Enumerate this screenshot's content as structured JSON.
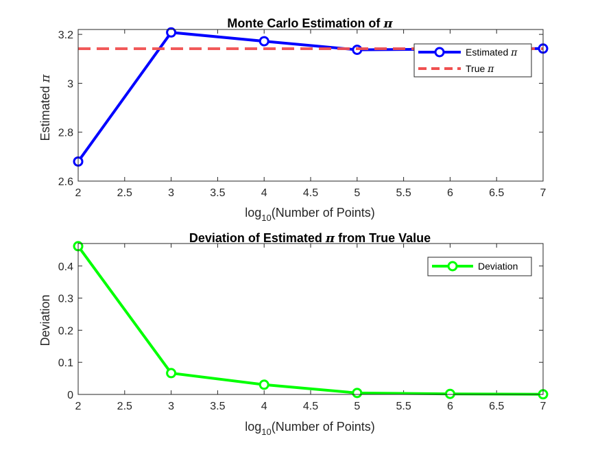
{
  "chart_data": [
    {
      "type": "line",
      "title": "Monte Carlo Estimation of",
      "title_symbol": "π",
      "xlabel_base": "log",
      "xlabel_sub": "10",
      "xlabel_rest": "(Number of Points)",
      "ylabel": "Estimated",
      "ylabel_symbol": "π",
      "xlim": [
        2,
        7
      ],
      "ylim": [
        2.6,
        3.22
      ],
      "xticks": [
        "2",
        "2.5",
        "3",
        "3.5",
        "4",
        "4.5",
        "5",
        "5.5",
        "6",
        "6.5",
        "7"
      ],
      "yticks": [
        "2.6",
        "2.8",
        "3",
        "3.2"
      ],
      "legend_position": "top-right",
      "series": [
        {
          "name": "Estimated π",
          "legend_text": "Estimated",
          "legend_symbol": "π",
          "color": "#0000ff",
          "style": "solid-with-circle-markers",
          "x": [
            2,
            3,
            4,
            5,
            6,
            7
          ],
          "y": [
            2.68,
            3.208,
            3.172,
            3.137,
            3.1399,
            3.1421
          ]
        },
        {
          "name": "True π",
          "legend_text": "True",
          "legend_symbol": "π",
          "color": "#f05050",
          "style": "dashed",
          "x": [
            2,
            7
          ],
          "y": [
            3.1416,
            3.1416
          ]
        }
      ]
    },
    {
      "type": "line",
      "title": "Deviation of Estimated",
      "title_symbol": "π",
      "title_suffix": "from True Value",
      "xlabel_base": "log",
      "xlabel_sub": "10",
      "xlabel_rest": "(Number of Points)",
      "ylabel": "Deviation",
      "xlim": [
        2,
        7
      ],
      "ylim": [
        0,
        0.47
      ],
      "xticks": [
        "2",
        "2.5",
        "3",
        "3.5",
        "4",
        "4.5",
        "5",
        "5.5",
        "6",
        "6.5",
        "7"
      ],
      "yticks": [
        "0",
        "0.1",
        "0.2",
        "0.3",
        "0.4"
      ],
      "legend_position": "top-right",
      "series": [
        {
          "name": "Deviation",
          "color": "#00ff00",
          "style": "solid-with-circle-markers",
          "x": [
            2,
            3,
            4,
            5,
            6,
            7
          ],
          "y": [
            0.4616,
            0.0664,
            0.0304,
            0.0046,
            0.0017,
            0.0005
          ]
        }
      ]
    }
  ]
}
